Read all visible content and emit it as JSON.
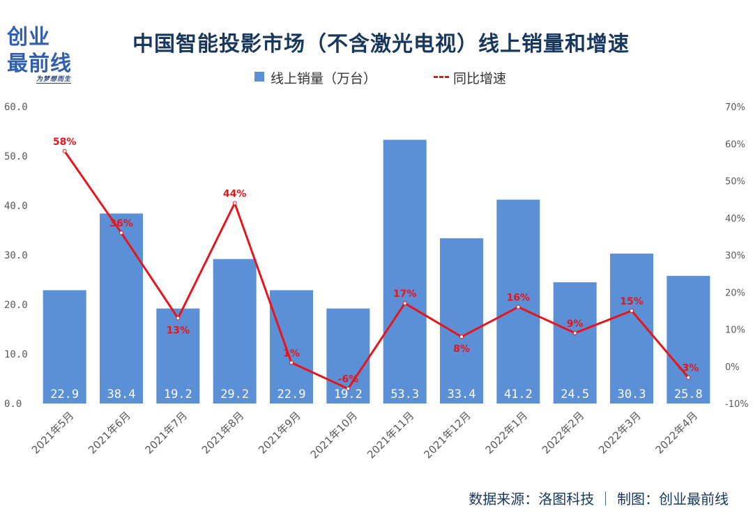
{
  "logo": {
    "line1": "创业",
    "line2": "最前线",
    "tagline": "为梦想而生"
  },
  "footer": {
    "source": "数据来源：洛图科技 ｜ 制图：创业最前线"
  },
  "chart_data": {
    "type": "bar",
    "title": "中国智能投影市场（不含激光电视）线上销量和增速",
    "categories": [
      "2021年5月",
      "2021年6月",
      "2021年7月",
      "2021年8月",
      "2021年9月",
      "2021年10月",
      "2021年11月",
      "2021年12月",
      "2022年1月",
      "2022年2月",
      "2022年3月",
      "2022年4月"
    ],
    "series": [
      {
        "name": "线上销量（万台）",
        "type": "bar",
        "axis": "left",
        "color": "#5b8fd6",
        "values": [
          22.9,
          38.4,
          19.2,
          29.2,
          22.9,
          19.2,
          53.3,
          33.4,
          41.2,
          24.5,
          30.3,
          25.8
        ],
        "labels": [
          "22.9",
          "38.4",
          "19.2",
          "29.2",
          "22.9",
          "19.2",
          "53.3",
          "33.4",
          "41.2",
          "24.5",
          "30.3",
          "25.8"
        ]
      },
      {
        "name": "同比增速",
        "type": "line",
        "axis": "right",
        "color": "#e8141a",
        "values": [
          58,
          36,
          13,
          44,
          1,
          -6,
          17,
          8,
          16,
          9,
          15,
          -3
        ],
        "labels": [
          "58%",
          "36%",
          "13%",
          "44%",
          "1%",
          "-6%",
          "17%",
          "8%",
          "16%",
          "9%",
          "15%",
          "-3%"
        ]
      }
    ],
    "y_left": {
      "range": [
        0,
        60
      ],
      "ticks": [
        "0.0",
        "10.0",
        "20.0",
        "30.0",
        "40.0",
        "50.0",
        "60.0"
      ]
    },
    "y_right": {
      "range": [
        -10,
        70
      ],
      "ticks": [
        "-10%",
        "0%",
        "10%",
        "20%",
        "30%",
        "40%",
        "50%",
        "60%",
        "70%"
      ]
    },
    "legend_position": "top-center",
    "grid": false
  }
}
